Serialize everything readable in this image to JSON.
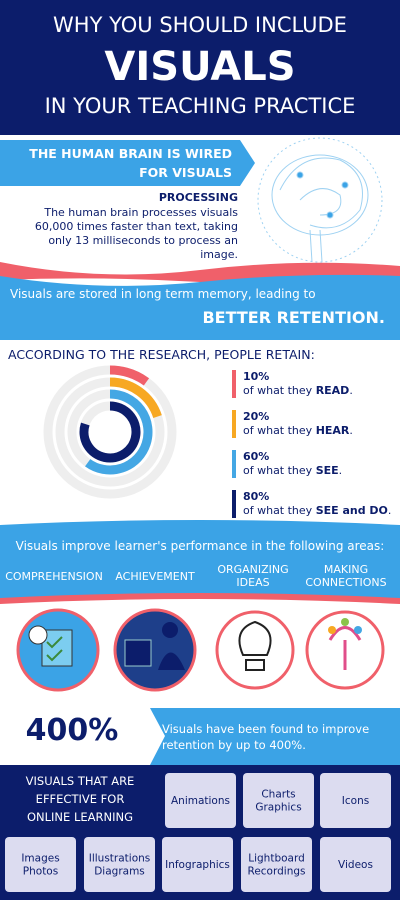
{
  "header": {
    "lines": [
      "WHY YOU SHOULD INCLUDE",
      "VISUALS",
      "IN YOUR TEACHING PRACTICE"
    ]
  },
  "brain": {
    "banner": [
      "THE HUMAN BRAIN IS WIRED",
      "FOR VISUALS"
    ],
    "heading": "PROCESSING",
    "text": [
      "The human brain processes visuals",
      "60,000 times faster than text, taking",
      "only 13 milliseconds to process an",
      "image."
    ]
  },
  "memory": {
    "text": "Visuals are stored in long term memory, leading to",
    "emphasis": "BETTER RETENTION."
  },
  "retention": {
    "title": "ACCORDING TO THE RESEARCH, PEOPLE RETAIN:",
    "rlim": [
      0,
      100
    ],
    "items": [
      {
        "value": 10,
        "label": "10%",
        "pre": "of what they ",
        "emph": "READ",
        "post": ".",
        "color": "#f0606a"
      },
      {
        "value": 20,
        "label": "20%",
        "pre": "of what they ",
        "emph": "HEAR",
        "post": ".",
        "color": "#f7a823"
      },
      {
        "value": 60,
        "label": "60%",
        "pre": "of what they ",
        "emph": "SEE",
        "post": ".",
        "color": "#44a7e4"
      },
      {
        "value": 80,
        "label": "80%",
        "pre": "of what they ",
        "emph": "SEE and DO",
        "post": ".",
        "color": "#0c1d6b"
      }
    ]
  },
  "performance": {
    "intro": "Visuals improve learner's performance in the following areas:",
    "areas": [
      [
        "COMPREHENSION"
      ],
      [
        "ACHIEVEMENT"
      ],
      [
        "ORGANIZING",
        "IDEAS"
      ],
      [
        "MAKING",
        "CONNECTIONS"
      ]
    ]
  },
  "impact": {
    "figure": "400%",
    "text": [
      "Visuals have been found to improve",
      "retention by up to 400%."
    ]
  },
  "online": {
    "title": [
      "VISUALS THAT ARE",
      "EFFECTIVE FOR",
      "ONLINE LEARNING"
    ],
    "formats": [
      [
        "Animations"
      ],
      [
        "Charts",
        "Graphics"
      ],
      [
        "Icons"
      ],
      [
        "Images",
        "Photos"
      ],
      [
        "Illustrations",
        "Diagrams"
      ],
      [
        "Infographics"
      ],
      [
        "Lightboard",
        "Recordings"
      ],
      [
        "Videos"
      ]
    ]
  }
}
